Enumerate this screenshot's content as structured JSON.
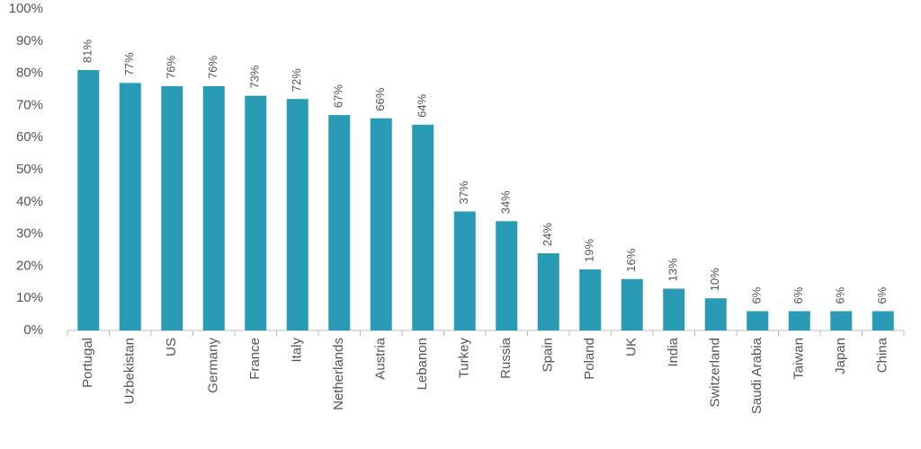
{
  "chart_data": {
    "type": "bar",
    "categories": [
      "Portugal",
      "Uzbekistan",
      "US",
      "Germany",
      "France",
      "Italy",
      "Netherlands",
      "Austria",
      "Lebanon",
      "Turkey",
      "Russia",
      "Spain",
      "Poland",
      "UK",
      "India",
      "Switzerland",
      "Saudi Arabia",
      "Taiwan",
      "Japan",
      "China"
    ],
    "values": [
      81,
      77,
      76,
      76,
      73,
      72,
      67,
      66,
      64,
      37,
      34,
      24,
      19,
      16,
      13,
      10,
      6,
      6,
      6,
      6
    ],
    "value_labels": [
      "81%",
      "77%",
      "76%",
      "76%",
      "73%",
      "72%",
      "67%",
      "66%",
      "64%",
      "37%",
      "34%",
      "24%",
      "19%",
      "16%",
      "13%",
      "10%",
      "6%",
      "6%",
      "6%",
      "6%"
    ],
    "color": "#2a9bb5",
    "ylim": [
      0,
      100
    ],
    "yticks": [
      {
        "value": 0,
        "label": "0%"
      },
      {
        "value": 10,
        "label": "10%"
      },
      {
        "value": 20,
        "label": "20%"
      },
      {
        "value": 30,
        "label": "30%"
      },
      {
        "value": 40,
        "label": "40%"
      },
      {
        "value": 50,
        "label": "50%"
      },
      {
        "value": 60,
        "label": "60%"
      },
      {
        "value": 70,
        "label": "70%"
      },
      {
        "value": 80,
        "label": "80%"
      },
      {
        "value": 90,
        "label": "90%"
      },
      {
        "value": 100,
        "label": "100%"
      }
    ],
    "grid": false
  }
}
